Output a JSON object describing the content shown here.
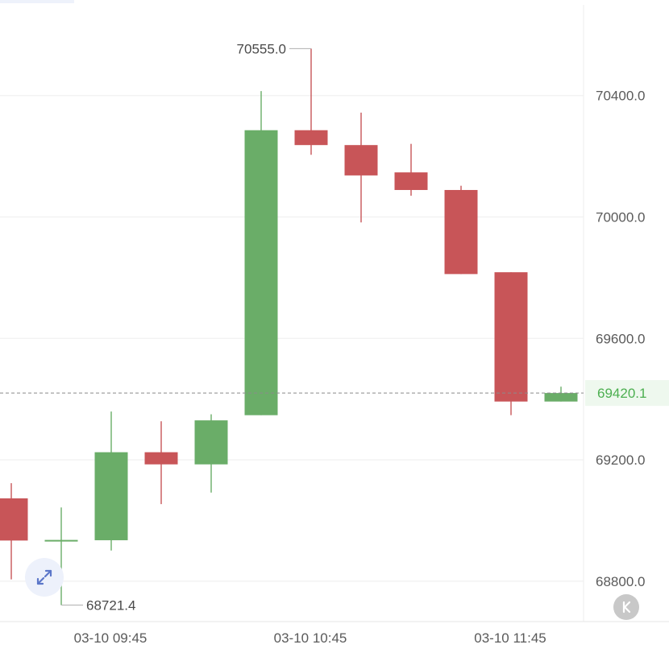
{
  "chart_data": {
    "type": "candlestick",
    "x_tick_labels": [
      "03-10 09:45",
      "03-10 10:45",
      "03-10 11:45"
    ],
    "y_tick_labels": [
      "70400.0",
      "70000.0",
      "69600.0",
      "69200.0",
      "68800.0"
    ],
    "y_ticks": [
      70400,
      70000,
      69600,
      69200,
      68800
    ],
    "ylim": [
      68667,
      70715
    ],
    "last_price": 69420.1,
    "last_price_label": "69420.1",
    "max_annotation": {
      "value": 70555.0,
      "label": "70555.0"
    },
    "min_annotation": {
      "value": 68721.4,
      "label": "68721.4"
    },
    "candles": [
      {
        "open": 69073,
        "close": 68934,
        "high": 69123,
        "low": 68806
      },
      {
        "open": 68934,
        "close": 68936,
        "high": 69043,
        "low": 68721.4
      },
      {
        "open": 68935,
        "close": 69225,
        "high": 69359,
        "low": 68901
      },
      {
        "open": 69225,
        "close": 69185,
        "high": 69327,
        "low": 69054
      },
      {
        "open": 69185,
        "close": 69330,
        "high": 69350,
        "low": 69092
      },
      {
        "open": 69347,
        "close": 70286,
        "high": 70415,
        "low": 69347
      },
      {
        "open": 70286,
        "close": 70237,
        "high": 70555.0,
        "low": 70205
      },
      {
        "open": 70237,
        "close": 70137,
        "high": 70344,
        "low": 69982
      },
      {
        "open": 70147,
        "close": 70089,
        "high": 70241,
        "low": 70070
      },
      {
        "open": 70089,
        "close": 69812,
        "high": 70103,
        "low": 69812
      },
      {
        "open": 69818,
        "close": 69392,
        "high": 69818,
        "low": 69347
      },
      {
        "open": 69392,
        "close": 69420.1,
        "high": 69441,
        "low": 69392
      }
    ],
    "colors": {
      "up": "#6aad68",
      "down": "#c85558",
      "grid": "#eeeeee",
      "last": "#4caf50"
    }
  },
  "icons": {
    "expand": "expand-arrows-icon",
    "back": "back-k-icon"
  },
  "back_button_label": "K"
}
